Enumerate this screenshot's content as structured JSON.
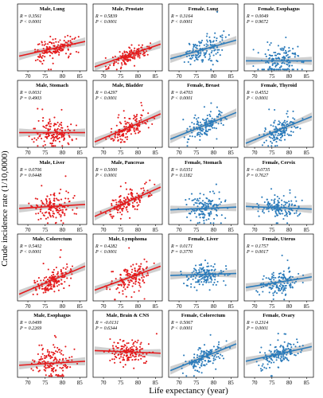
{
  "chart_data": {
    "type": "scatter",
    "xlabel": "Life expectancy (year)",
    "ylabel": "Crude incidence rate (1/10,0000)",
    "x_ticks": [
      70,
      75,
      80,
      85
    ],
    "xlim": [
      67,
      87
    ],
    "colors": {
      "male": "#e41a1c",
      "female": "#2b7bba"
    },
    "panels": [
      {
        "title": "Male, Lung",
        "r": "R = 0.3561",
        "p": "P < 0.0001",
        "sex": "male",
        "line": [
          0.22,
          0.44
        ],
        "cy": 0.45,
        "sd": 0.14
      },
      {
        "title": "Male, Prostate",
        "r": "R = 0.5839",
        "p": "P < 0.0001",
        "sex": "male",
        "line": [
          0.06,
          0.4
        ],
        "cy": 0.26,
        "sd": 0.1
      },
      {
        "title": "Female, Lung",
        "r": "R = 0.3164",
        "p": "P < 0.0001",
        "sex": "female",
        "line": [
          0.18,
          0.46
        ],
        "cy": 0.38,
        "sd": 0.18
      },
      {
        "title": "Female, Esophagus",
        "r": "R = 0.0049",
        "p": "P = 0.9672",
        "sex": "female",
        "line": [
          0.15,
          0.15
        ],
        "cy": 0.2,
        "sd": 0.2
      },
      {
        "title": "Male, Stomach",
        "r": "R = 0.0031",
        "p": "P = 0.4903",
        "sex": "male",
        "line": [
          0.22,
          0.22
        ],
        "cy": 0.25,
        "sd": 0.18
      },
      {
        "title": "Male, Bladder",
        "r": "R = 0.4297",
        "p": "P < 0.0001",
        "sex": "male",
        "line": [
          0.08,
          0.5
        ],
        "cy": 0.3,
        "sd": 0.13
      },
      {
        "title": "Female, Breast",
        "r": "R = 0.4703",
        "p": "P < 0.0001",
        "sex": "female",
        "line": [
          0.12,
          0.52
        ],
        "cy": 0.32,
        "sd": 0.14
      },
      {
        "title": "Female, Thyroid",
        "r": "R = 0.4552",
        "p": "P < 0.0001",
        "sex": "female",
        "line": [
          0.06,
          0.46
        ],
        "cy": 0.26,
        "sd": 0.15
      },
      {
        "title": "Male, Liver",
        "r": "R = 0.0706",
        "p": "P = 0.0448",
        "sex": "male",
        "line": [
          0.24,
          0.3
        ],
        "cy": 0.28,
        "sd": 0.17
      },
      {
        "title": "Male, Pancreas",
        "r": "R = 0.5000",
        "p": "P < 0.0001",
        "sex": "male",
        "line": [
          0.12,
          0.56
        ],
        "cy": 0.32,
        "sd": 0.15
      },
      {
        "title": "Female, Stomach",
        "r": "R = 0.0351",
        "p": "P = 0.1182",
        "sex": "female",
        "line": [
          0.22,
          0.26
        ],
        "cy": 0.26,
        "sd": 0.18
      },
      {
        "title": "Female, Cervix",
        "r": "R = -0.0735",
        "p": "P = 0.7627",
        "sex": "female",
        "line": [
          0.27,
          0.23
        ],
        "cy": 0.24,
        "sd": 0.14
      },
      {
        "title": "Male, Colorectum",
        "r": "R = 0.5402",
        "p": "P < 0.0001",
        "sex": "male",
        "line": [
          0.1,
          0.52
        ],
        "cy": 0.3,
        "sd": 0.14
      },
      {
        "title": "Male, Lymphoma",
        "r": "R = 0.4282",
        "p": "P < 0.0001",
        "sex": "male",
        "line": [
          0.16,
          0.52
        ],
        "cy": 0.35,
        "sd": 0.15
      },
      {
        "title": "Female, Liver",
        "r": "R = 0.0171",
        "p": "P = 0.3770",
        "sex": "female",
        "line": [
          0.38,
          0.41
        ],
        "cy": 0.4,
        "sd": 0.14
      },
      {
        "title": "Female, Uterus",
        "r": "R = 0.1757",
        "p": "P = 0.0017",
        "sex": "female",
        "line": [
          0.2,
          0.36
        ],
        "cy": 0.3,
        "sd": 0.15
      },
      {
        "title": "Male, Esophagus",
        "r": "R = 0.0499",
        "p": "P = 0.2269",
        "sex": "male",
        "line": [
          0.18,
          0.24
        ],
        "cy": 0.26,
        "sd": 0.22
      },
      {
        "title": "Male, Brain & CNS",
        "r": "R = -0.0131",
        "p": "P = 0.6344",
        "sex": "male",
        "line": [
          0.4,
          0.36
        ],
        "cy": 0.38,
        "sd": 0.16
      },
      {
        "title": "Female, Colorectum",
        "r": "R = 0.5067",
        "p": "P < 0.0001",
        "sex": "female",
        "line": [
          0.1,
          0.5
        ],
        "cy": 0.3,
        "sd": 0.14
      },
      {
        "title": "Female, Ovary",
        "r": "R = 0.2314",
        "p": "P = 0.0001",
        "sex": "female",
        "line": [
          0.24,
          0.46
        ],
        "cy": 0.36,
        "sd": 0.15
      }
    ]
  }
}
